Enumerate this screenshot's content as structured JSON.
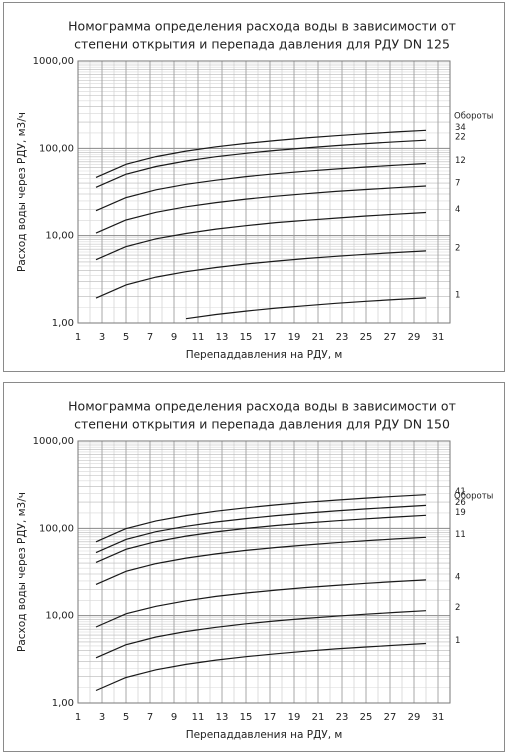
{
  "chart_data": [
    {
      "type": "line",
      "title": [
        "Номограмма  определения расхода воды в зависимости от",
        "степени открытия и перепада давления для РДУ DN 125"
      ],
      "x_label": "Перепаддавления на РДУ, м",
      "y_label": "Расход воды через РДУ, м3/ч",
      "legend_title": "Обороты",
      "log_y": true,
      "grid": true,
      "minor_grid": true,
      "xlim": [
        1,
        32
      ],
      "xticks": [
        1,
        3,
        5,
        7,
        9,
        11,
        13,
        15,
        17,
        19,
        21,
        23,
        25,
        27,
        29,
        31
      ],
      "ylim": [
        1,
        1000
      ],
      "yticks": [
        {
          "value": 1,
          "label": "1,00"
        },
        {
          "value": 10,
          "label": "10,00"
        },
        {
          "value": 100,
          "label": "100,00"
        },
        {
          "value": 1000,
          "label": "1000,00"
        }
      ],
      "x": [
        2.5,
        5,
        7.5,
        10,
        12.5,
        15,
        17.5,
        20,
        22.5,
        25,
        27.5,
        30
      ],
      "series": [
        {
          "name": "34",
          "color": "#1a1a1a",
          "values": [
            46.5,
            65.7,
            80.5,
            93.0,
            104,
            113.9,
            123,
            131.5,
            139.4,
            147,
            154.2,
            161
          ]
        },
        {
          "name": "22",
          "color": "#1a1a1a",
          "values": [
            35.8,
            50.6,
            62.0,
            71.6,
            80.1,
            87.7,
            94.7,
            101.2,
            107.4,
            113.2,
            118.7,
            124
          ]
        },
        {
          "name": "12",
          "color": "#1a1a1a",
          "values": [
            19.3,
            27.3,
            33.5,
            38.7,
            43.2,
            47.4,
            51.2,
            54.7,
            58.0,
            61.2,
            64.1,
            67
          ]
        },
        {
          "name": "7",
          "color": "#1a1a1a",
          "values": [
            10.7,
            15.1,
            18.5,
            21.4,
            23.9,
            26.2,
            28.3,
            30.2,
            32.1,
            33.8,
            35.4,
            37
          ]
        },
        {
          "name": "4",
          "color": "#1a1a1a",
          "values": [
            5.3,
            7.5,
            9.2,
            10.6,
            11.9,
            13.0,
            14.1,
            15.0,
            15.9,
            16.8,
            17.6,
            18.4
          ]
        },
        {
          "name": "2",
          "color": "#1a1a1a",
          "values": [
            1.93,
            2.73,
            3.35,
            3.87,
            4.32,
            4.74,
            5.12,
            5.47,
            5.8,
            6.12,
            6.41,
            6.7
          ]
        },
        {
          "name": "1",
          "color": "#1a1a1a",
          "values": [
            null,
            null,
            null,
            1.12,
            1.25,
            1.37,
            1.48,
            1.58,
            1.68,
            1.77,
            1.86,
            1.94
          ]
        }
      ]
    },
    {
      "type": "line",
      "title": [
        "Номограмма  определения расхода воды в зависимости от",
        "степени открытия и перепада давления для РДУ DN 150"
      ],
      "x_label": "Перепаддавления на РДУ, м",
      "y_label": "Расход воды через РДУ, м3/ч",
      "legend_title": "Обороты",
      "log_y": true,
      "grid": true,
      "minor_grid": true,
      "xlim": [
        1,
        32
      ],
      "xticks": [
        1,
        3,
        5,
        7,
        9,
        11,
        13,
        15,
        17,
        19,
        21,
        23,
        25,
        27,
        29,
        31
      ],
      "ylim": [
        1,
        1000
      ],
      "yticks": [
        {
          "value": 1,
          "label": "1,00"
        },
        {
          "value": 10,
          "label": "10,00"
        },
        {
          "value": 100,
          "label": "100,00"
        },
        {
          "value": 1000,
          "label": "1000,00"
        }
      ],
      "x": [
        2.5,
        5,
        7.5,
        10,
        12.5,
        15,
        17.5,
        20,
        22.5,
        25,
        27.5,
        30
      ],
      "series": [
        {
          "name": "41",
          "color": "#1a1a1a",
          "values": [
            70.2,
            99.2,
            121.5,
            140.3,
            156.9,
            171.8,
            185.6,
            198.4,
            210.4,
            221.8,
            232.7,
            243
          ]
        },
        {
          "name": "26",
          "color": "#1a1a1a",
          "values": [
            52.8,
            74.7,
            91.5,
            105.6,
            118.1,
            129.4,
            139.8,
            149.4,
            158.5,
            167.1,
            175.2,
            183
          ]
        },
        {
          "name": "19",
          "color": "#1a1a1a",
          "values": [
            40.7,
            57.6,
            70.5,
            81.4,
            91.0,
            99.7,
            107.7,
            115.1,
            122.1,
            128.7,
            135.0,
            141
          ]
        },
        {
          "name": "11",
          "color": "#1a1a1a",
          "values": [
            22.8,
            32.2,
            39.5,
            45.6,
            51.0,
            55.9,
            60.3,
            64.5,
            68.4,
            72.1,
            75.6,
            79
          ]
        },
        {
          "name": "4",
          "color": "#1a1a1a",
          "values": [
            7.42,
            10.5,
            12.8,
            14.8,
            16.6,
            18.2,
            19.6,
            21.0,
            22.2,
            23.5,
            24.6,
            25.7
          ]
        },
        {
          "name": "2",
          "color": "#1a1a1a",
          "values": [
            3.29,
            4.65,
            5.7,
            6.58,
            7.36,
            8.06,
            8.7,
            9.31,
            9.87,
            10.4,
            10.9,
            11.4
          ]
        },
        {
          "name": "1",
          "color": "#1a1a1a",
          "values": [
            1.39,
            1.96,
            2.4,
            2.77,
            3.1,
            3.39,
            3.66,
            3.92,
            4.16,
            4.38,
            4.59,
            4.8
          ]
        }
      ]
    }
  ]
}
